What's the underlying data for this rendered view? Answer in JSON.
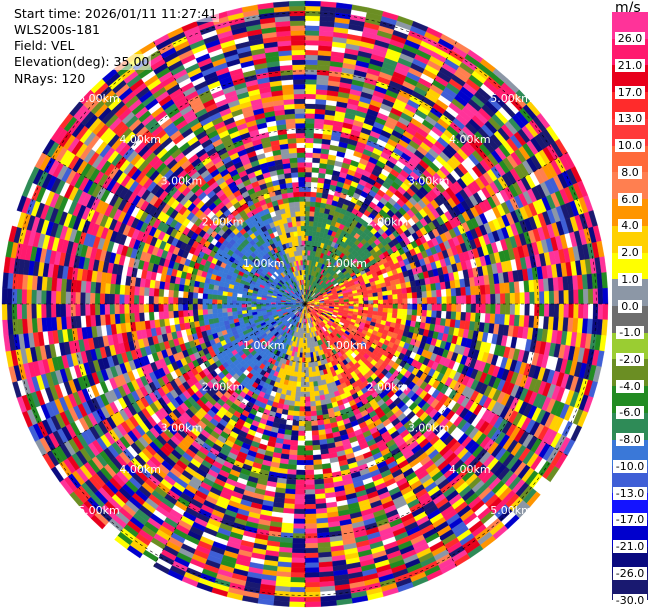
{
  "header": {
    "start_time": "Start time: 2026/01/11 11:27:41",
    "instrument": "WLS200s-181",
    "field": "Field: VEL",
    "elevation": "Elevation(deg): 35.00",
    "nrays": "NRays: 120"
  },
  "colorbar": {
    "title": "m/s",
    "ticks": [
      "26.0",
      "21.0",
      "17.0",
      "13.0",
      "10.0",
      "8.0",
      "6.0",
      "4.0",
      "2.0",
      "1.0",
      "0.0",
      "-1.0",
      "-2.0",
      "-4.0",
      "-6.0",
      "-8.0",
      "-10.0",
      "-13.0",
      "-17.0",
      "-21.0",
      "-26.0",
      "-30.0"
    ],
    "colors": [
      "#ff3399",
      "#ff1a6e",
      "#e8001c",
      "#ff2b2b",
      "#ff3a3a",
      "#ff6a3a",
      "#ff7f50",
      "#ff9500",
      "#ffd000",
      "#ffff00",
      "#8c97a6",
      "#6e6e6e",
      "#9acd32",
      "#6b8e23",
      "#228b22",
      "#2e8b57",
      "#3a78d8",
      "#3f5fd6",
      "#1414ff",
      "#0000cd",
      "#0a0a80",
      "#191970"
    ]
  },
  "chart_data": {
    "type": "heatmap",
    "projection": "polar PPI",
    "field": "VEL",
    "units": "m/s",
    "nrays": 120,
    "elevation_deg": 35.0,
    "range_rings_km": [
      1.0,
      2.0,
      3.0,
      4.0,
      5.0
    ],
    "range_ring_labels": [
      "1.00km",
      "2.00km",
      "3.00km",
      "4.00km",
      "5.00km"
    ],
    "max_range_km": 5.2,
    "clim": [
      -30.0,
      30.0
    ],
    "pattern": "coherent near-field: positive (red/orange/yellow) to the east, negative (blue) to the west, green to the north-northeast; noisy random velocities beyond ~1.8 km"
  }
}
